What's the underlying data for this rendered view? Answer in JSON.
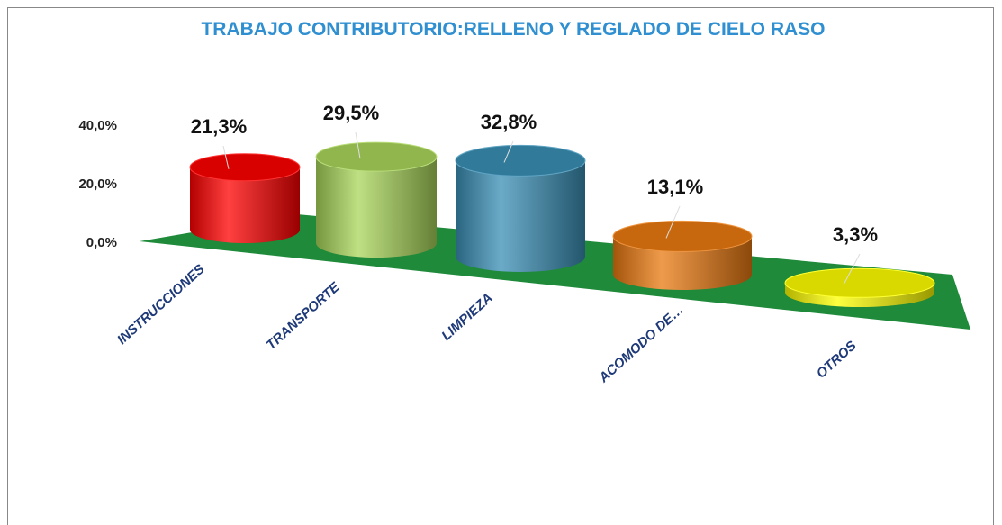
{
  "chart_data": {
    "type": "bar",
    "title": "TRABAJO CONTRIBUTORIO:RELLENO Y REGLADO DE CIELO RASO",
    "categories": [
      "INSTRUCCIONES",
      "TRANSPORTE",
      "LIMPIEZA",
      "ACOMODO DE…",
      "OTROS"
    ],
    "values": [
      21.3,
      29.5,
      32.8,
      13.1,
      3.3
    ],
    "value_labels": [
      "21,3%",
      "29,5%",
      "32,8%",
      "13,1%",
      "3,3%"
    ],
    "colors": [
      "#ff0000",
      "#a9d65a",
      "#3a8fb5",
      "#ea7a10",
      "#ffff00"
    ],
    "ylim": [
      0,
      40
    ],
    "yticks": [
      {
        "value": 0,
        "label": "0,0%"
      },
      {
        "value": 20,
        "label": "20,0%"
      },
      {
        "value": 40,
        "label": "40,0%"
      }
    ]
  }
}
